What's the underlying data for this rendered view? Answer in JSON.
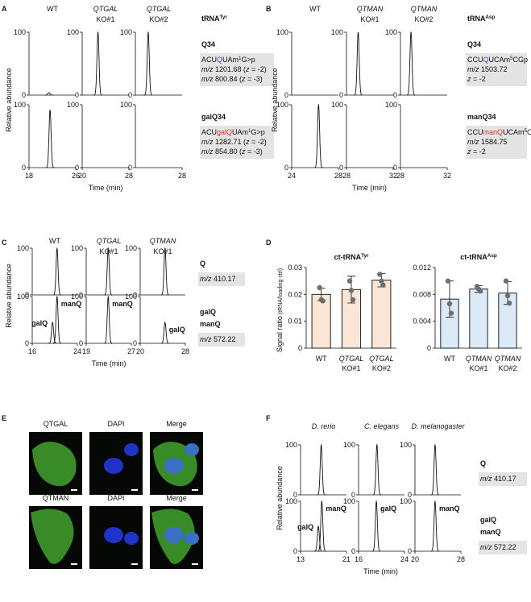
{
  "panels": {
    "A": {
      "label": "A",
      "title": [
        {
          "text": "tRNA"
        },
        {
          "text": "Tyr",
          "sup": true
        }
      ],
      "columns": [
        {
          "text": "WT"
        },
        {
          "text": "QTGAL",
          "sub": "KO#1",
          "color": "#e32b2b",
          "italic": true
        },
        {
          "text": "QTGAL",
          "sub": "KO#2",
          "color": "#e32b2b",
          "italic": true
        }
      ],
      "y_label": "Relative abundance",
      "x_label": "Time (min)",
      "ylim": [
        0,
        100
      ],
      "yticks": [
        0,
        100
      ],
      "rows": [
        {
          "name": [
            "Q34"
          ],
          "color": "#3c4b9a",
          "box": [
            [
              {
                "text": "ACU"
              },
              {
                "text": "Q",
                "color": "#3c4b9a"
              },
              {
                "text": "UAm"
              },
              {
                "text": "1",
                "sup": true
              },
              {
                "text": "G>p"
              }
            ],
            [
              {
                "text": "m/z",
                "italic": true
              },
              {
                "text": " 1201.68 ("
              },
              {
                "text": "z",
                "italic": true
              },
              {
                "text": " = -2)"
              }
            ],
            [
              {
                "text": "m/z",
                "italic": true
              },
              {
                "text": " 800.84 ("
              },
              {
                "text": "z",
                "italic": true
              },
              {
                "text": " = -3)"
              }
            ]
          ],
          "plots": [
            {
              "xlim": [
                18,
                26
              ],
              "peaks": [
                {
                  "center": 21.4,
                  "height": 4
                }
              ]
            },
            {
              "xlim": [
                20,
                28
              ],
              "peaks": [
                {
                  "center": 22.7,
                  "height": 100
                }
              ]
            },
            {
              "xlim": [
                20,
                28
              ],
              "peaks": [
                {
                  "center": 22.2,
                  "height": 100
                }
              ]
            }
          ]
        },
        {
          "name": [
            "galQ34"
          ],
          "color": "#e32b2b",
          "box": [
            [
              {
                "text": "ACU"
              },
              {
                "text": "galQ",
                "color": "#e32b2b"
              },
              {
                "text": "UAm"
              },
              {
                "text": "1",
                "sup": true
              },
              {
                "text": "G>p"
              }
            ],
            [
              {
                "text": "m/z",
                "italic": true
              },
              {
                "text": " 1282.71 ("
              },
              {
                "text": "z",
                "italic": true
              },
              {
                "text": " = -2)"
              }
            ],
            [
              {
                "text": "m/z",
                "italic": true
              },
              {
                "text": " 854.80 ("
              },
              {
                "text": "z",
                "italic": true
              },
              {
                "text": " = -3)"
              }
            ]
          ],
          "plots": [
            {
              "xlim": [
                18,
                26
              ],
              "xticks": [
                18,
                26
              ],
              "peaks": [
                {
                  "center": 21.6,
                  "height": 92
                }
              ]
            },
            {
              "xlim": [
                20,
                28
              ],
              "xticks": [
                20,
                28
              ],
              "peaks": []
            },
            {
              "xlim": [
                20,
                28
              ],
              "xticks": [
                28
              ],
              "peaks": []
            }
          ]
        }
      ]
    },
    "B": {
      "label": "B",
      "title": [
        {
          "text": "tRNA"
        },
        {
          "text": "Asp",
          "sup": true
        }
      ],
      "columns": [
        {
          "text": "WT"
        },
        {
          "text": "QTMAN",
          "sub": "KO#1",
          "color": "#1f8b2b",
          "italic": true
        },
        {
          "text": "QTMAN",
          "sub": "KO#2",
          "color": "#1f8b2b",
          "italic": true
        }
      ],
      "y_label": "Relative abundance",
      "x_label": "Time (min)",
      "ylim": [
        0,
        100
      ],
      "yticks": [
        0,
        100
      ],
      "rows": [
        {
          "name": [
            "Q34"
          ],
          "color": "#3c4b9a",
          "box": [
            [
              {
                "text": "CCU"
              },
              {
                "text": "Q",
                "color": "#3c4b9a"
              },
              {
                "text": "UCAm"
              },
              {
                "text": "5",
                "sup": true
              },
              {
                "text": "CGp"
              }
            ],
            [
              {
                "text": "m/z",
                "italic": true
              },
              {
                "text": " 1503.72"
              }
            ],
            [
              {
                "text": "z",
                "italic": true
              },
              {
                "text": " = -2"
              }
            ]
          ],
          "plots": [
            {
              "xlim": [
                24,
                28
              ],
              "peaks": []
            },
            {
              "xlim": [
                28,
                32
              ],
              "peaks": [
                {
                  "center": 29.0,
                  "height": 100
                }
              ]
            },
            {
              "xlim": [
                28,
                32
              ],
              "peaks": [
                {
                  "center": 28.9,
                  "height": 100
                }
              ]
            }
          ]
        },
        {
          "name": [
            "manQ34"
          ],
          "color": "#1f8b2b",
          "box": [
            [
              {
                "text": "CCU"
              },
              {
                "text": "manQ",
                "color": "#e32b2b"
              },
              {
                "text": "UCAm"
              },
              {
                "text": "5",
                "sup": true
              },
              {
                "text": "CGp"
              }
            ],
            [
              {
                "text": "m/z",
                "italic": true
              },
              {
                "text": " 1584.75"
              }
            ],
            [
              {
                "text": "z",
                "italic": true
              },
              {
                "text": " = -2"
              }
            ]
          ],
          "plots": [
            {
              "xlim": [
                24,
                28
              ],
              "xticks": [
                24,
                28
              ],
              "peaks": [
                {
                  "center": 26.3,
                  "height": 100
                }
              ]
            },
            {
              "xlim": [
                28,
                32
              ],
              "xticks": [
                28,
                32
              ],
              "peaks": []
            },
            {
              "xlim": [
                28,
                32
              ],
              "xticks": [
                28,
                32
              ],
              "peaks": []
            }
          ]
        }
      ]
    },
    "C": {
      "label": "C",
      "columns": [
        {
          "text": "WT"
        },
        {
          "text": "QTGAL",
          "sub": "KO#1",
          "color": "#e32b2b",
          "italic": true
        },
        {
          "text": "QTMAN",
          "sub": "KO#1",
          "color": "#1f8b2b",
          "italic": true
        }
      ],
      "y_label": "Relative abundance",
      "x_label": "Time (min)",
      "ylim": [
        0,
        100
      ],
      "yticks": [
        0,
        100
      ],
      "rows": [
        {
          "name": [
            "Q"
          ],
          "box": [
            [
              {
                "text": "m/z",
                "italic": true
              },
              {
                "text": " 410.17"
              }
            ]
          ],
          "plots": [
            {
              "xlim": [
                16,
                24
              ],
              "peaks": [
                {
                  "center": 20.4,
                  "height": 100
                }
              ]
            },
            {
              "xlim": [
                19,
                27
              ],
              "peaks": [
                {
                  "center": 22.9,
                  "height": 100
                }
              ]
            },
            {
              "xlim": [
                20,
                28
              ],
              "peaks": [
                {
                  "center": 24.4,
                  "height": 100
                }
              ]
            }
          ]
        },
        {
          "name": [
            "galQ",
            "manQ"
          ],
          "box": [
            [
              {
                "text": "m/z",
                "italic": true
              },
              {
                "text": " 572.22"
              }
            ]
          ],
          "plots": [
            {
              "xlim": [
                16,
                24
              ],
              "xticks": [
                16,
                24
              ],
              "peaks": [
                {
                  "center": 19.6,
                  "height": 45,
                  "label": "galQ"
                },
                {
                  "center": 20.4,
                  "height": 100,
                  "label": "manQ"
                }
              ]
            },
            {
              "xlim": [
                19,
                27
              ],
              "xticks": [
                19,
                27
              ],
              "peaks": [
                {
                  "center": 22.9,
                  "height": 100,
                  "label": "manQ"
                }
              ]
            },
            {
              "xlim": [
                20,
                28
              ],
              "xticks": [
                20,
                28
              ],
              "peaks": [
                {
                  "center": 24.4,
                  "height": 45,
                  "label": "galQ"
                }
              ]
            }
          ]
        }
      ]
    },
    "D": {
      "label": "D",
      "y_label": "Signal ratio",
      "y_label_sub": " (tRNA/loading ctrl)",
      "charts": [
        {
          "type": "bar",
          "title": [
            {
              "text": "ct-tRNA"
            },
            {
              "text": "Tyr",
              "sup": true
            }
          ],
          "categories": [
            {
              "text": "WT"
            },
            {
              "text": "QTGAL",
              "sub": "KO#1",
              "color": "#e32b2b",
              "italic": true
            },
            {
              "text": "QTGAL",
              "sub": "KO#2",
              "color": "#e32b2b",
              "italic": true
            }
          ],
          "values": [
            0.02,
            0.0218,
            0.0253
          ],
          "errors": [
            0.0023,
            0.005,
            0.0025
          ],
          "points": [
            [
              0.0225,
              0.018,
              0.0176
            ],
            [
              0.025,
              0.0215,
              0.018
            ],
            [
              0.0275,
              0.025,
              0.0235
            ]
          ],
          "color": "#fbe6d6",
          "ylim": [
            0,
            0.03
          ],
          "yticks": [
            0,
            0.01,
            0.02,
            0.03
          ]
        },
        {
          "type": "bar",
          "title": [
            {
              "text": "ct-tRNA"
            },
            {
              "text": "Asp",
              "sup": true
            }
          ],
          "categories": [
            {
              "text": "WT"
            },
            {
              "text": "QTMAN",
              "sub": "KO#1",
              "color": "#1f8b2b",
              "italic": true
            },
            {
              "text": "QTMAN",
              "sub": "KO#2",
              "color": "#1f8b2b",
              "italic": true
            }
          ],
          "values": [
            0.0073,
            0.0088,
            0.0082
          ],
          "errors": [
            0.0027,
            0.0005,
            0.0017
          ],
          "points": [
            [
              0.01,
              0.0066,
              0.0052
            ],
            [
              0.0092,
              0.0088,
              0.0085
            ],
            [
              0.01,
              0.0078,
              0.0067
            ]
          ],
          "color": "#dbeaf7",
          "ylim": [
            0,
            0.012
          ],
          "yticks": [
            0,
            0.004,
            0.008,
            0.012
          ]
        }
      ]
    },
    "E": {
      "label": "E",
      "rows": [
        [
          "QTGAL",
          "DAPI",
          "Merge"
        ],
        [
          "QTMAN",
          "DAPI",
          "Merge"
        ]
      ]
    },
    "F": {
      "label": "F",
      "columns": [
        {
          "text": "D. rerio",
          "italic": true
        },
        {
          "text": "C. elegans",
          "italic": true
        },
        {
          "text": "D. melanogaster",
          "italic": true
        }
      ],
      "y_label": "Relative abundance",
      "x_label": "Time (min)",
      "ylim": [
        0,
        100
      ],
      "yticks": [
        0,
        100
      ],
      "rows": [
        {
          "name": [
            "Q"
          ],
          "box": [
            [
              {
                "text": "m/z",
                "italic": true
              },
              {
                "text": " 410.17"
              }
            ]
          ],
          "plots": [
            {
              "xlim": [
                13,
                21
              ],
              "peaks": [
                {
                  "center": 16.6,
                  "height": 100
                }
              ]
            },
            {
              "xlim": [
                16,
                24
              ],
              "peaks": [
                {
                  "center": 19.2,
                  "height": 100
                }
              ]
            },
            {
              "xlim": [
                20,
                28
              ],
              "peaks": [
                {
                  "center": 23.5,
                  "height": 100
                }
              ]
            }
          ]
        },
        {
          "name": [
            "galQ",
            "manQ"
          ],
          "box": [
            [
              {
                "text": "m/z",
                "italic": true
              },
              {
                "text": " 572.22"
              }
            ]
          ],
          "plots": [
            {
              "xlim": [
                13,
                21
              ],
              "xticks": [
                13,
                21
              ],
              "peaks": [
                {
                  "center": 16.1,
                  "height": 50,
                  "label": "galQ"
                },
                {
                  "center": 16.7,
                  "height": 100,
                  "label": "manQ"
                }
              ]
            },
            {
              "xlim": [
                16,
                24
              ],
              "xticks": [
                16,
                24
              ],
              "peaks": [
                {
                  "center": 19.1,
                  "height": 100,
                  "label": "galQ"
                }
              ]
            },
            {
              "xlim": [
                20,
                28
              ],
              "xticks": [
                20,
                28
              ],
              "peaks": [
                {
                  "center": 23.5,
                  "height": 100,
                  "label": "manQ"
                }
              ]
            }
          ]
        }
      ]
    }
  }
}
